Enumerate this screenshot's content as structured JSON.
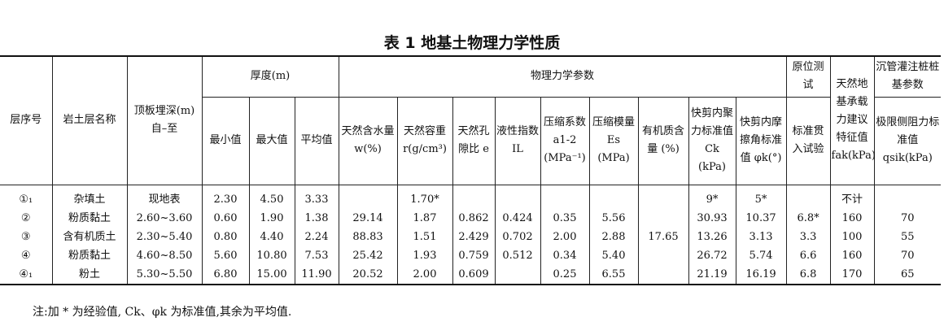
{
  "title": "表 1  地基土物理力学性质",
  "headers": {
    "layer_no": "层序号",
    "rock_name": "岩土层名称",
    "roof_depth": "顶板埋深(m)自–至",
    "thickness": "厚度(m)",
    "min": "最小值",
    "max": "最大值",
    "avg": "平均值",
    "physmech": "物理力学参数",
    "water": "天然含水量 w(%)",
    "density": "天然容重 r(g/cm³)",
    "void": "天然孔隙比 e",
    "liquidity": "液性指数 IL",
    "compress_a": "压缩系数 a1-2 (MPa⁻¹)",
    "compress_e": "压缩模量 Es (MPa)",
    "organic": "有机质含量 (%)",
    "cohesion": "快剪内聚力标准值 Ck (kPa)",
    "friction": "快剪内摩擦角标准值 φk(°)",
    "insitu": "原位测试",
    "spt": "标准贯入试验",
    "bearing_top": "天然地",
    "bearing": "基承载力建议特征值 fak(kPa)",
    "pile_top": "沉管灌注桩桩基参数",
    "pile": "极限侧阻力标准值 qsik(kPa)"
  },
  "rows": [
    [
      "①₁",
      "杂填土",
      "现地表",
      "2.30",
      "4.50",
      "3.33",
      "",
      "1.70*",
      "",
      "",
      "",
      "",
      "",
      "9*",
      "5*",
      "",
      "不计",
      ""
    ],
    [
      "②",
      "粉质黏土",
      "2.60~3.60",
      "0.60",
      "1.90",
      "1.38",
      "29.14",
      "1.87",
      "0.862",
      "0.424",
      "0.35",
      "5.56",
      "",
      "30.93",
      "10.37",
      "6.8*",
      "160",
      "70"
    ],
    [
      "③",
      "含有机质土",
      "2.30~5.40",
      "0.80",
      "4.40",
      "2.24",
      "88.83",
      "1.51",
      "2.429",
      "0.702",
      "2.00",
      "2.88",
      "17.65",
      "13.26",
      "3.13",
      "3.3",
      "100",
      "55"
    ],
    [
      "④",
      "粉质黏土",
      "4.60~8.50",
      "5.60",
      "10.80",
      "7.53",
      "25.42",
      "1.93",
      "0.759",
      "0.512",
      "0.34",
      "5.40",
      "",
      "26.72",
      "5.74",
      "6.6",
      "160",
      "70"
    ],
    [
      "④₁",
      "粉土",
      "5.30~5.50",
      "6.80",
      "15.00",
      "11.90",
      "20.52",
      "2.00",
      "0.609",
      "",
      "0.25",
      "6.55",
      "",
      "21.19",
      "16.19",
      "6.8",
      "170",
      "65"
    ]
  ],
  "note": "注:加 * 为经验值, Ck、φk 为标准值,其余为平均值."
}
